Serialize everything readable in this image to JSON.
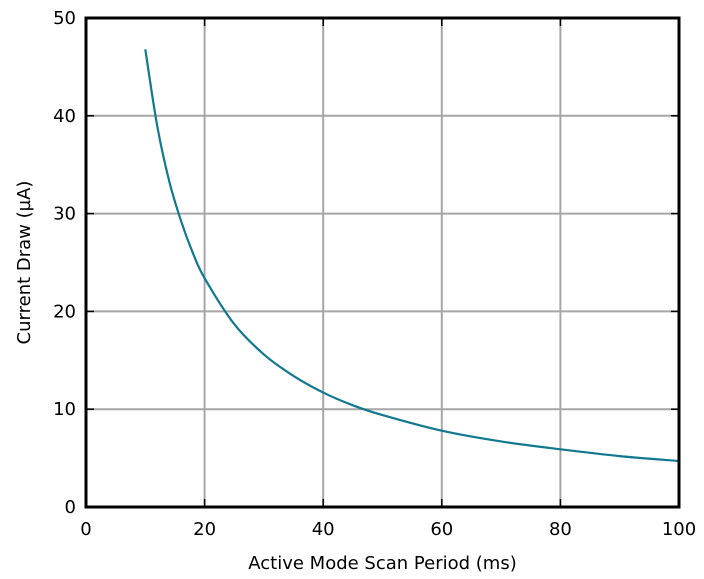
{
  "chart_data": {
    "type": "line",
    "title": "",
    "xlabel": "Active Mode Scan Period (ms)",
    "ylabel": "Current Draw (µA)",
    "xlim": [
      0,
      100
    ],
    "ylim": [
      0,
      50
    ],
    "xticks": [
      "0",
      "20",
      "40",
      "60",
      "80",
      "100"
    ],
    "yticks": [
      "0",
      "10",
      "20",
      "30",
      "40",
      "50"
    ],
    "grid": true,
    "line_color": "#11788e",
    "series": [
      {
        "x": [
          10,
          12,
          14,
          16,
          18,
          20,
          25,
          30,
          35,
          40,
          45,
          50,
          60,
          70,
          80,
          90,
          100
        ],
        "y": [
          46.8,
          39,
          33.4,
          29.3,
          26,
          23.4,
          18.7,
          15.6,
          13.4,
          11.7,
          10.4,
          9.4,
          7.8,
          6.7,
          5.9,
          5.2,
          4.7
        ]
      }
    ]
  }
}
